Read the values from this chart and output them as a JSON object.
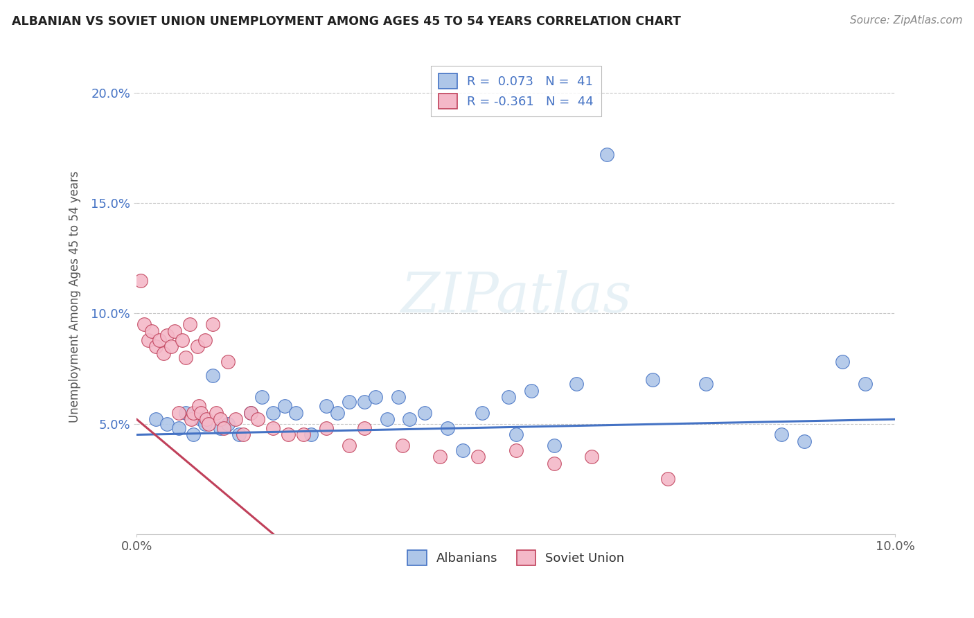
{
  "title": "ALBANIAN VS SOVIET UNION UNEMPLOYMENT AMONG AGES 45 TO 54 YEARS CORRELATION CHART",
  "source": "Source: ZipAtlas.com",
  "ylabel": "Unemployment Among Ages 45 to 54 years",
  "xlim": [
    0.0,
    10.0
  ],
  "ylim": [
    0.0,
    21.5
  ],
  "blue_color": "#4472c4",
  "pink_color": "#c0405a",
  "blue_fill": "#aec6e8",
  "pink_fill": "#f4b8c8",
  "albanians_R": 0.073,
  "albanians_N": 41,
  "soviet_R": -0.361,
  "soviet_N": 44,
  "albanians_x": [
    0.25,
    0.4,
    0.55,
    0.65,
    0.75,
    0.85,
    0.9,
    1.0,
    1.1,
    1.2,
    1.35,
    1.5,
    1.65,
    1.8,
    1.95,
    2.1,
    2.3,
    2.5,
    2.65,
    2.8,
    3.0,
    3.15,
    3.3,
    3.45,
    3.6,
    3.8,
    4.1,
    4.3,
    4.55,
    4.9,
    5.0,
    5.2,
    5.5,
    5.8,
    6.2,
    6.8,
    7.5,
    8.5,
    8.8,
    9.3,
    9.6
  ],
  "albanians_y": [
    5.2,
    5.0,
    4.8,
    5.5,
    4.5,
    5.2,
    5.0,
    7.2,
    4.8,
    5.0,
    4.5,
    5.5,
    6.2,
    5.5,
    5.8,
    5.5,
    4.5,
    5.8,
    5.5,
    6.0,
    6.0,
    6.2,
    5.2,
    6.2,
    5.2,
    5.5,
    4.8,
    3.8,
    5.5,
    6.2,
    4.5,
    6.5,
    4.0,
    6.8,
    17.2,
    7.0,
    6.8,
    4.5,
    4.2,
    7.8,
    6.8
  ],
  "soviet_x": [
    0.05,
    0.1,
    0.15,
    0.2,
    0.25,
    0.3,
    0.35,
    0.4,
    0.45,
    0.5,
    0.55,
    0.6,
    0.65,
    0.7,
    0.72,
    0.75,
    0.8,
    0.82,
    0.85,
    0.9,
    0.92,
    0.95,
    1.0,
    1.05,
    1.1,
    1.15,
    1.2,
    1.3,
    1.4,
    1.5,
    1.6,
    1.8,
    2.0,
    2.2,
    2.5,
    2.8,
    3.0,
    3.5,
    4.0,
    4.5,
    5.0,
    5.5,
    6.0,
    7.0
  ],
  "soviet_y": [
    11.5,
    9.5,
    8.8,
    9.2,
    8.5,
    8.8,
    8.2,
    9.0,
    8.5,
    9.2,
    5.5,
    8.8,
    8.0,
    9.5,
    5.2,
    5.5,
    8.5,
    5.8,
    5.5,
    8.8,
    5.2,
    5.0,
    9.5,
    5.5,
    5.2,
    4.8,
    7.8,
    5.2,
    4.5,
    5.5,
    5.2,
    4.8,
    4.5,
    4.5,
    4.8,
    4.0,
    4.8,
    4.0,
    3.5,
    3.5,
    3.8,
    3.2,
    3.5,
    2.5
  ],
  "blue_line": [
    0.0,
    10.0,
    4.5,
    5.2
  ],
  "pink_line": [
    0.0,
    1.8,
    5.2,
    0.0
  ],
  "background_color": "#ffffff",
  "grid_color": "#c8c8c8",
  "ytick_color": "#4472c4",
  "xtick_color": "#555555",
  "label_color": "#555555"
}
